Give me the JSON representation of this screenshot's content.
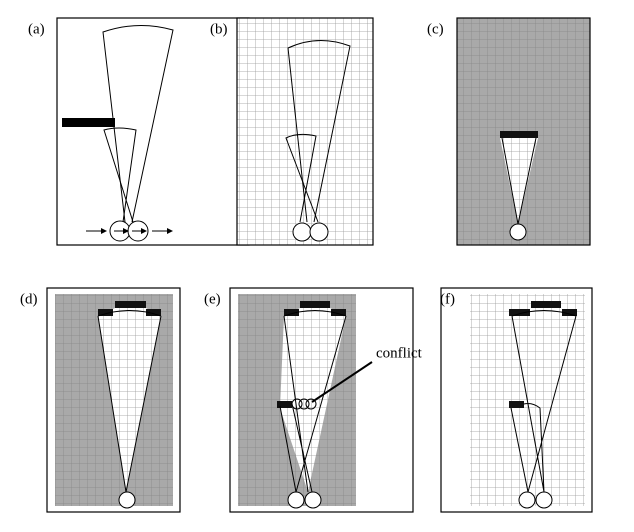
{
  "panels": [
    {
      "label": "(a)"
    },
    {
      "label": "(b)"
    },
    {
      "label": "(c)"
    },
    {
      "label": "(d)"
    },
    {
      "label": "(e)"
    },
    {
      "label": "(f)"
    }
  ],
  "annotation": "conflict"
}
